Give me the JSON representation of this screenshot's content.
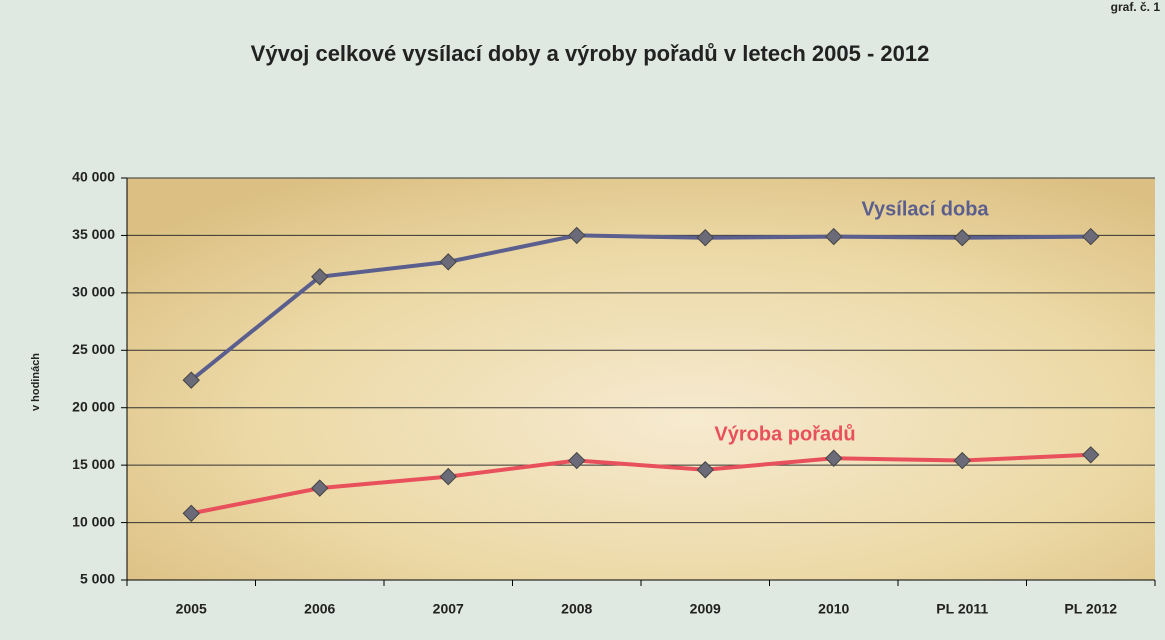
{
  "chart_data": {
    "type": "line",
    "title": "Vývoj celkové vysílací doby a výroby pořadů v letech 2005 - 2012",
    "corner_note": "graf. č. 1",
    "y_label": "v hodinách",
    "categories": [
      "2005",
      "2006",
      "2007",
      "2008",
      "2009",
      "2010",
      "PL 2011",
      "PL 2012"
    ],
    "series": [
      {
        "name": "Vysílací doba",
        "color": "#5b5f8e",
        "values": [
          22400,
          31400,
          32700,
          35000,
          34800,
          34900,
          34800,
          34900
        ]
      },
      {
        "name": "Výroba pořadů",
        "color": "#e8505c",
        "values": [
          10800,
          13000,
          14000,
          15400,
          14600,
          15600,
          15400,
          15900
        ]
      }
    ],
    "ylim": [
      5000,
      40000
    ],
    "yticks": [
      {
        "value": 5000,
        "label": "5 000"
      },
      {
        "value": 10000,
        "label": "10 000"
      },
      {
        "value": 15000,
        "label": "15 000"
      },
      {
        "value": 20000,
        "label": "20 000"
      },
      {
        "value": 25000,
        "label": "25 000"
      },
      {
        "value": 30000,
        "label": "30 000"
      },
      {
        "value": 35000,
        "label": "35 000"
      },
      {
        "value": 40000,
        "label": "40 000"
      }
    ],
    "grid": true
  }
}
